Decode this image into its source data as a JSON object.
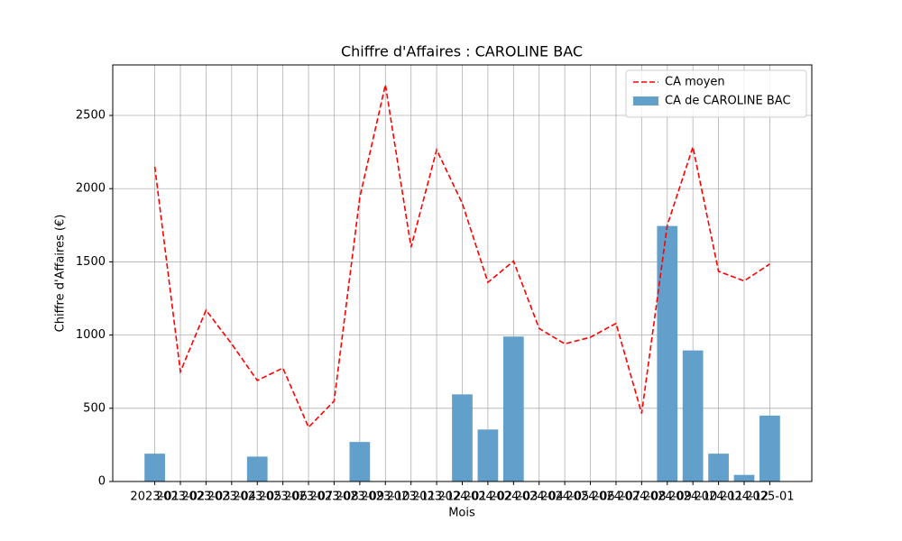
{
  "chart_data": {
    "type": "bar_line",
    "title": "Chiffre d'Affaires : CAROLINE BAC",
    "x_label": "Mois",
    "y_label": "Chiffre d'Affaires (€)",
    "categories": [
      "2023-01",
      "2023-02",
      "2023-03",
      "2023-04",
      "2023-05",
      "2023-06",
      "2023-07",
      "2023-08",
      "2023-09",
      "2023-10",
      "2023-11",
      "2023-12",
      "2024-01",
      "2024-02",
      "2024-03",
      "2024-04",
      "2024-05",
      "2024-06",
      "2024-07",
      "2024-08",
      "2024-09",
      "2024-10",
      "2024-11",
      "2024-12",
      "2025-01"
    ],
    "series": [
      {
        "name": "CA moyen",
        "type": "line",
        "color": "#ff0000",
        "values": [
          2150,
          750,
          1170,
          940,
          690,
          775,
          370,
          550,
          1940,
          2710,
          1600,
          2265,
          1900,
          1360,
          1505,
          1045,
          940,
          985,
          1080,
          465,
          1750,
          2285,
          1435,
          1370,
          1485
        ]
      },
      {
        "name": "CA de CAROLINE BAC",
        "type": "bar",
        "color": "#629fca",
        "values": [
          190,
          0,
          0,
          0,
          170,
          0,
          0,
          0,
          270,
          0,
          0,
          0,
          595,
          355,
          990,
          0,
          0,
          0,
          0,
          0,
          1745,
          895,
          190,
          45,
          450
        ]
      }
    ],
    "ylim": [
      0,
      2845
    ],
    "yticks": [
      0,
      500,
      1000,
      1500,
      2000,
      2500
    ],
    "grid": true,
    "legend": "upper right"
  }
}
